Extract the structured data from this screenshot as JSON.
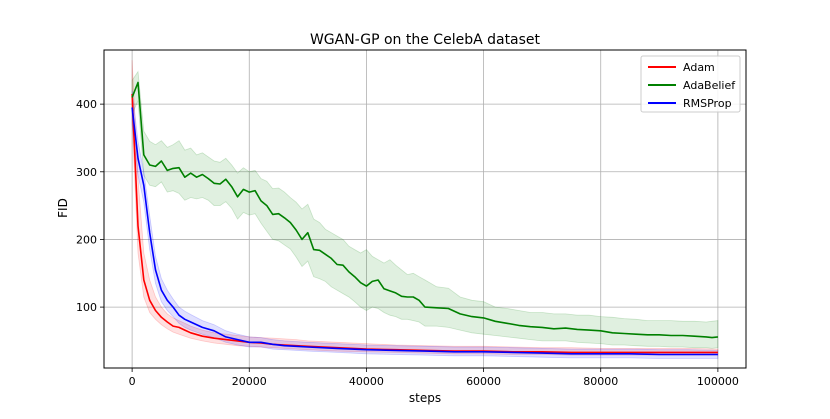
{
  "chart_data": {
    "type": "line",
    "title": "WGAN-GP on the CelebA dataset",
    "xlabel": "steps",
    "ylabel": "FID",
    "xlim": [
      -4800,
      104800
    ],
    "ylim": [
      10,
      480
    ],
    "xticks": [
      0,
      20000,
      40000,
      60000,
      80000,
      100000
    ],
    "xtick_labels": [
      "0",
      "20000",
      "40000",
      "60000",
      "80000",
      "100000"
    ],
    "yticks": [
      100,
      200,
      300,
      400
    ],
    "ytick_labels": [
      "100",
      "200",
      "300",
      "400"
    ],
    "grid": true,
    "legend_position": "top-right",
    "series": [
      {
        "name": "Adam",
        "color": "#ff0000",
        "x": [
          0,
          1000,
          2000,
          3000,
          4000,
          5000,
          6000,
          7000,
          8000,
          9000,
          10000,
          12000,
          14000,
          16000,
          18000,
          20000,
          22000,
          24000,
          26000,
          28000,
          30000,
          35000,
          40000,
          45000,
          50000,
          55000,
          60000,
          65000,
          70000,
          75000,
          80000,
          85000,
          90000,
          95000,
          100000
        ],
        "values": [
          415,
          220,
          140,
          110,
          95,
          85,
          78,
          72,
          70,
          66,
          62,
          57,
          54,
          52,
          50,
          48,
          47,
          45,
          44,
          43,
          42,
          40,
          38,
          37,
          36,
          35,
          35,
          34,
          34,
          33,
          33,
          33,
          33,
          33,
          33
        ],
        "band_upper": [
          465,
          290,
          180,
          140,
          115,
          100,
          90,
          84,
          80,
          76,
          72,
          66,
          62,
          60,
          58,
          56,
          55,
          54,
          53,
          52,
          50,
          48,
          46,
          44,
          43,
          42,
          42,
          41,
          40,
          40,
          39,
          39,
          39,
          39,
          38
        ],
        "band_lower": [
          375,
          180,
          115,
          92,
          82,
          74,
          68,
          63,
          60,
          57,
          54,
          50,
          47,
          45,
          43,
          42,
          41,
          40,
          39,
          38,
          37,
          35,
          34,
          33,
          32,
          31,
          31,
          30,
          30,
          29,
          29,
          29,
          29,
          29,
          29
        ]
      },
      {
        "name": "AdaBelief",
        "color": "#008000",
        "x": [
          0,
          1000,
          2000,
          3000,
          4000,
          5000,
          6000,
          7000,
          8000,
          9000,
          10000,
          11000,
          12000,
          13000,
          14000,
          15000,
          16000,
          17000,
          18000,
          19000,
          20000,
          21000,
          22000,
          23000,
          24000,
          25000,
          26000,
          27000,
          28000,
          29000,
          30000,
          31000,
          32000,
          33000,
          34000,
          35000,
          36000,
          37000,
          38000,
          39000,
          40000,
          41000,
          42000,
          43000,
          44000,
          45000,
          46000,
          47000,
          48000,
          49000,
          50000,
          52000,
          54000,
          56000,
          58000,
          60000,
          62000,
          64000,
          66000,
          68000,
          70000,
          72000,
          74000,
          76000,
          78000,
          80000,
          82000,
          84000,
          86000,
          88000,
          90000,
          92000,
          94000,
          96000,
          98000,
          99000,
          100000
        ],
        "values": [
          410,
          432,
          325,
          310,
          308,
          316,
          302,
          305,
          306,
          292,
          298,
          292,
          296,
          290,
          283,
          282,
          289,
          278,
          263,
          274,
          270,
          272,
          257,
          250,
          237,
          238,
          232,
          225,
          214,
          200,
          210,
          185,
          184,
          178,
          172,
          163,
          162,
          152,
          145,
          136,
          131,
          138,
          140,
          127,
          124,
          121,
          116,
          115,
          115,
          110,
          100,
          99,
          98,
          90,
          86,
          84,
          79,
          76,
          73,
          71,
          70,
          68,
          69,
          67,
          66,
          65,
          62,
          61,
          60,
          59,
          59,
          58,
          58,
          57,
          56,
          55,
          56
        ],
        "band_upper": [
          435,
          448,
          360,
          345,
          340,
          346,
          336,
          340,
          346,
          332,
          335,
          325,
          328,
          322,
          316,
          314,
          320,
          310,
          298,
          306,
          300,
          302,
          290,
          286,
          275,
          276,
          270,
          262,
          255,
          245,
          252,
          230,
          225,
          215,
          210,
          205,
          200,
          190,
          185,
          180,
          185,
          175,
          170,
          165,
          170,
          162,
          155,
          148,
          150,
          145,
          140,
          130,
          128,
          115,
          110,
          108,
          100,
          98,
          95,
          92,
          92,
          90,
          90,
          88,
          88,
          86,
          85,
          83,
          82,
          80,
          80,
          80,
          79,
          79,
          78,
          79,
          80
        ],
        "band_lower": [
          385,
          405,
          295,
          280,
          278,
          285,
          270,
          272,
          268,
          258,
          262,
          260,
          262,
          258,
          250,
          250,
          256,
          246,
          230,
          240,
          236,
          238,
          224,
          212,
          200,
          198,
          192,
          186,
          174,
          160,
          168,
          145,
          142,
          138,
          130,
          125,
          120,
          115,
          108,
          100,
          95,
          100,
          98,
          92,
          88,
          86,
          82,
          82,
          80,
          78,
          72,
          72,
          70,
          66,
          62,
          60,
          58,
          56,
          54,
          52,
          50,
          50,
          50,
          48,
          47,
          46,
          44,
          44,
          43,
          42,
          42,
          41,
          41,
          40,
          40,
          39,
          40
        ]
      },
      {
        "name": "RMSProp",
        "color": "#0000ff",
        "x": [
          0,
          1000,
          2000,
          3000,
          4000,
          5000,
          6000,
          7000,
          8000,
          9000,
          10000,
          12000,
          14000,
          16000,
          18000,
          20000,
          22000,
          24000,
          26000,
          28000,
          30000,
          35000,
          40000,
          45000,
          50000,
          55000,
          60000,
          65000,
          70000,
          75000,
          80000,
          85000,
          90000,
          95000,
          100000
        ],
        "values": [
          395,
          320,
          280,
          210,
          155,
          125,
          110,
          100,
          88,
          82,
          78,
          70,
          65,
          56,
          52,
          48,
          48,
          45,
          43,
          42,
          41,
          39,
          37,
          36,
          35,
          34,
          34,
          33,
          32,
          31,
          31,
          31,
          30,
          30,
          30
        ],
        "band_upper": [
          420,
          345,
          300,
          235,
          175,
          142,
          125,
          112,
          100,
          94,
          89,
          80,
          74,
          65,
          60,
          56,
          55,
          52,
          50,
          49,
          48,
          46,
          44,
          43,
          42,
          41,
          41,
          40,
          39,
          38,
          38,
          38,
          37,
          37,
          36
        ],
        "band_lower": [
          370,
          295,
          255,
          185,
          135,
          108,
          95,
          86,
          76,
          70,
          66,
          60,
          55,
          48,
          44,
          41,
          41,
          38,
          37,
          36,
          35,
          33,
          31,
          30,
          29,
          28,
          28,
          27,
          26,
          25,
          25,
          25,
          24,
          24,
          24
        ]
      }
    ]
  }
}
